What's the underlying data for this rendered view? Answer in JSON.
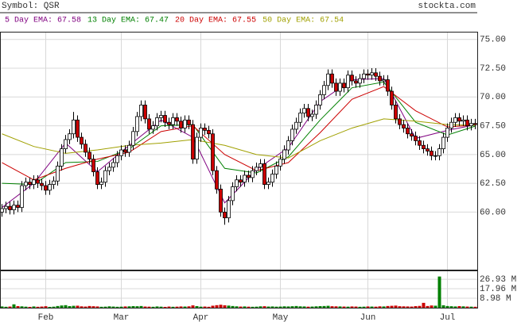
{
  "chart_data": {
    "type": "candlestick",
    "symbol": "Symbol: QSR",
    "site": "stockta.com",
    "xlim": [
      -0.5,
      119.5
    ],
    "xticks": [
      {
        "value": 11,
        "label": "Feb"
      },
      {
        "value": 30,
        "label": "Mar"
      },
      {
        "value": 50,
        "label": "Apr"
      },
      {
        "value": 70,
        "label": "May"
      },
      {
        "value": 92,
        "label": "Jun"
      },
      {
        "value": 112,
        "label": "Jul"
      }
    ],
    "ylim": [
      55,
      75.6
    ],
    "yticks": [
      {
        "value": 75,
        "label": "75.00"
      },
      {
        "value": 72.5,
        "label": "72.50"
      },
      {
        "value": 70,
        "label": "70.00"
      },
      {
        "value": 67.5,
        "label": "67.50"
      },
      {
        "value": 65,
        "label": "65.00"
      },
      {
        "value": 62.5,
        "label": "62.50"
      },
      {
        "value": 60,
        "label": "60.00"
      }
    ],
    "grid": true,
    "up_color": "#ffffff",
    "down_color": "#cc0000",
    "open": [
      60.0,
      60.3,
      60.5,
      60.2,
      60.6,
      60.4,
      62.3,
      62.6,
      62.4,
      62.8,
      62.5,
      62.3,
      61.9,
      62.4,
      62.7,
      64,
      65.5,
      66.3,
      66.8,
      68.0,
      66.5,
      65.9,
      65.2,
      64.6,
      63.5,
      62.4,
      62.6,
      63.6,
      63.9,
      64.3,
      64.9,
      65.4,
      65.2,
      65.8,
      67.0,
      68.3,
      69.3,
      68.1,
      67.2,
      67.5,
      68.2,
      68.4,
      67.8,
      67.6,
      68.2,
      67.9,
      67.3,
      68.0,
      67.6,
      64.6,
      66.5,
      67.3,
      67.1,
      66.8,
      63.6,
      62.0,
      60.0,
      59.5,
      61.0,
      62.2,
      62.8,
      62.6,
      63.2,
      63.0,
      63.6,
      63.9,
      64.2,
      62.4,
      62.6,
      63.3,
      64.0,
      64.6,
      65.4,
      66.2,
      67.2,
      67.8,
      68.6,
      69.0,
      68.3,
      68.5,
      69.3,
      70.2,
      71.0,
      72.0,
      71.2,
      70.5,
      71.2,
      70.8,
      71.9,
      71.4,
      71.2,
      71.6,
      72.0,
      71.9,
      72.1,
      71.8,
      71.4,
      71.5,
      70.5,
      69.3,
      68.1,
      67.6,
      67.3,
      66.8,
      66.6,
      66.2,
      65.8,
      65.5,
      65.3,
      64.9,
      64.9,
      65.5,
      66.5,
      67.3,
      67.8,
      68.2,
      67.9,
      68.0,
      67.5,
      67.7
    ],
    "high": [
      60.7,
      60.9,
      60.9,
      61.0,
      61.0,
      62.7,
      63.0,
      63.0,
      63.2,
      63.2,
      62.9,
      62.7,
      62.8,
      63.1,
      64.4,
      65.9,
      66.7,
      67.2,
      68.7,
      68.4,
      66.9,
      66.3,
      65.6,
      65.0,
      63.9,
      63.0,
      64.0,
      64.3,
      64.7,
      65.3,
      65.8,
      65.8,
      66.2,
      67.4,
      68.7,
      69.7,
      69.7,
      68.5,
      67.9,
      68.6,
      68.8,
      68.8,
      68.2,
      68.6,
      68.6,
      68.3,
      68.4,
      68.4,
      68.0,
      66.9,
      67.7,
      67.7,
      67.5,
      67.2,
      64.0,
      62.4,
      60.4,
      61.4,
      62.6,
      63.2,
      63.2,
      63.6,
      63.6,
      64.0,
      64.3,
      64.6,
      64.6,
      63.0,
      63.7,
      64.4,
      65.0,
      65.8,
      66.6,
      67.6,
      68.2,
      69.0,
      69.4,
      69.4,
      68.9,
      69.7,
      70.6,
      71.4,
      72.4,
      72.4,
      71.6,
      71.6,
      71.6,
      72.3,
      72.3,
      71.8,
      72.0,
      72.4,
      72.4,
      72.5,
      72.5,
      72.2,
      71.9,
      71.9,
      70.9,
      69.7,
      68.5,
      68.0,
      67.7,
      67.2,
      67.0,
      66.6,
      66.2,
      65.9,
      65.7,
      65.3,
      65.9,
      66.9,
      67.7,
      68.2,
      68.6,
      68.6,
      68.4,
      68.4,
      68.1,
      68.1
    ],
    "low": [
      59.6,
      59.9,
      59.8,
      59.8,
      60.0,
      60.0,
      61.9,
      62.0,
      62.0,
      62.1,
      61.9,
      61.5,
      61.5,
      62.0,
      62.3,
      63.6,
      65.1,
      65.9,
      66.4,
      66.1,
      65.5,
      64.8,
      64.2,
      63.1,
      62.0,
      62.0,
      62.2,
      63.2,
      63.5,
      63.9,
      64.5,
      64.8,
      64.8,
      65.4,
      66.6,
      67.9,
      67.7,
      66.8,
      66.8,
      67.1,
      67.8,
      67.4,
      67.2,
      67.2,
      67.5,
      66.9,
      66.9,
      67.2,
      64.2,
      64.2,
      66.1,
      66.7,
      66.4,
      63.2,
      61.6,
      59.6,
      58.9,
      59.1,
      60.6,
      61.8,
      62.2,
      62.2,
      62.6,
      62.6,
      63.2,
      63.5,
      62.0,
      62.0,
      62.2,
      62.9,
      63.6,
      64.2,
      65.0,
      65.8,
      66.8,
      67.4,
      68.2,
      67.9,
      67.9,
      68.1,
      68.9,
      69.8,
      70.6,
      70.8,
      70.1,
      70.1,
      70.4,
      70.4,
      71.0,
      70.8,
      70.8,
      71.2,
      71.5,
      71.5,
      71.4,
      71.0,
      71.0,
      70.1,
      68.9,
      67.7,
      67.2,
      66.9,
      66.4,
      66.2,
      65.8,
      65.4,
      65.1,
      64.9,
      64.5,
      64.5,
      64.5,
      65.1,
      66.1,
      66.9,
      67.4,
      67.5,
      67.5,
      67.1,
      67.1,
      67.2
    ],
    "close": [
      60.3,
      60.5,
      60.2,
      60.6,
      60.4,
      62.3,
      62.6,
      62.4,
      62.8,
      62.5,
      62.3,
      61.9,
      62.4,
      62.7,
      64,
      65.5,
      66.3,
      66.8,
      68.0,
      66.5,
      65.9,
      65.2,
      64.6,
      63.5,
      62.4,
      62.6,
      63.6,
      63.9,
      64.3,
      64.9,
      65.4,
      65.2,
      65.8,
      67.0,
      68.3,
      69.3,
      68.1,
      67.2,
      67.5,
      68.2,
      68.4,
      67.8,
      67.6,
      68.2,
      67.9,
      67.3,
      68.0,
      67.6,
      64.6,
      66.5,
      67.3,
      67.1,
      66.8,
      63.6,
      62.0,
      60.0,
      59.5,
      61.0,
      62.2,
      62.8,
      62.6,
      63.2,
      63.0,
      63.6,
      63.9,
      64.2,
      62.4,
      62.6,
      63.3,
      64.0,
      64.6,
      65.4,
      66.2,
      67.2,
      67.8,
      68.6,
      69.0,
      68.3,
      68.5,
      69.3,
      70.2,
      71.0,
      72.0,
      71.2,
      70.5,
      71.2,
      70.8,
      71.9,
      71.4,
      71.2,
      71.6,
      72.0,
      71.9,
      72.1,
      71.8,
      71.4,
      71.5,
      70.5,
      69.3,
      68.1,
      67.6,
      67.3,
      66.8,
      66.6,
      66.2,
      65.8,
      65.5,
      65.3,
      64.9,
      64.9,
      65.5,
      66.5,
      67.3,
      67.8,
      68.2,
      67.9,
      68.0,
      67.5,
      67.7,
      67.6
    ],
    "series": [
      {
        "name": "5 Day EMA: 67.58",
        "color": "#800080",
        "x": [
          0,
          8,
          16,
          24,
          32,
          40,
          48,
          56,
          64,
          72,
          80,
          88,
          96,
          104,
          112,
          119
        ],
        "values": [
          60.4,
          62.5,
          66.0,
          63.5,
          65.8,
          68.0,
          66.5,
          60.8,
          63.7,
          65.6,
          69.6,
          71.5,
          71.6,
          66.4,
          67.1,
          67.58
        ]
      },
      {
        "name": "13 Day EMA: 67.47",
        "color": "#008000",
        "x": [
          0,
          8,
          16,
          24,
          32,
          40,
          48,
          56,
          64,
          72,
          80,
          88,
          96,
          104,
          112,
          119
        ],
        "values": [
          62.5,
          62.4,
          64.3,
          64.4,
          65.5,
          67.5,
          67.6,
          63.8,
          63.4,
          64.8,
          68.0,
          70.8,
          71.3,
          67.8,
          66.7,
          67.47
        ]
      },
      {
        "name": "20 Day EMA: 67.55",
        "color": "#cc0000",
        "x": [
          0,
          8,
          16,
          24,
          32,
          40,
          48,
          56,
          64,
          72,
          80,
          88,
          96,
          104,
          112,
          119
        ],
        "values": [
          64.3,
          62.8,
          63.8,
          64.6,
          65.2,
          67.0,
          67.5,
          65.0,
          63.6,
          64.3,
          66.9,
          69.8,
          70.9,
          68.8,
          67.4,
          67.55
        ]
      },
      {
        "name": "50 Day EMA: 67.54",
        "color": "#a0a000",
        "x": [
          0,
          8,
          16,
          24,
          32,
          40,
          48,
          56,
          64,
          72,
          80,
          88,
          96,
          104,
          112,
          119
        ],
        "values": [
          66.8,
          65.7,
          65.1,
          65.4,
          65.8,
          66.0,
          66.3,
          65.8,
          65.0,
          64.7,
          66.2,
          67.3,
          68.1,
          67.9,
          67.6,
          67.54
        ]
      }
    ],
    "volume": {
      "up_color": "#008000",
      "down_color": "#cc0000",
      "ylim": [
        0,
        34.5
      ],
      "yticks": [
        {
          "value": 26.93,
          "label": "26.93 M"
        },
        {
          "value": 17.96,
          "label": "17.96 M"
        },
        {
          "value": 8.98,
          "label": "8.98 M"
        }
      ],
      "values": [
        1.2,
        0.9,
        1.1,
        3.2,
        1.5,
        1.3,
        1.0,
        0.8,
        1.2,
        0.9,
        1.1,
        1.4,
        0.8,
        1.0,
        1.6,
        2.1,
        2.4,
        1.5,
        1.8,
        1.9,
        1.3,
        1.1,
        1.6,
        1.4,
        1.2,
        0.9,
        1.0,
        1.3,
        1.1,
        0.9,
        1.0,
        1.2,
        1.3,
        1.5,
        1.4,
        1.6,
        1.1,
        1.0,
        0.9,
        1.2,
        1.0,
        0.8,
        1.1,
        0.9,
        1.0,
        1.2,
        1.1,
        1.3,
        2.2,
        1.5,
        1.0,
        1.1,
        0.9,
        1.9,
        2.4,
        2.8,
        2.3,
        2.0,
        1.6,
        1.3,
        1.1,
        1.2,
        1.0,
        0.9,
        1.0,
        1.3,
        1.4,
        1.1,
        1.2,
        1.0,
        1.1,
        1.3,
        1.2,
        1.4,
        1.6,
        1.3,
        1.2,
        1.0,
        1.1,
        1.3,
        1.5,
        1.6,
        1.8,
        1.4,
        1.3,
        1.2,
        1.1,
        1.0,
        1.2,
        1.1,
        0.9,
        1.0,
        1.2,
        1.1,
        1.0,
        1.3,
        1.2,
        1.6,
        1.8,
        2.0,
        1.4,
        1.3,
        1.2,
        1.1,
        1.5,
        1.7,
        4.6,
        1.6,
        2.1,
        1.9,
        29.5,
        2.3,
        1.6,
        1.4,
        1.2,
        1.5,
        1.3,
        1.1,
        1.0,
        0.9
      ]
    }
  }
}
